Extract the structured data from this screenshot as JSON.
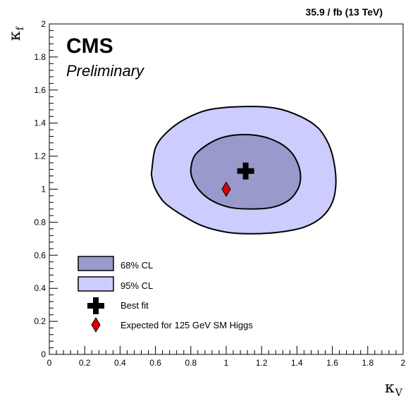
{
  "chart_data": {
    "type": "contour",
    "lumi_label": "35.9 / fb (13 TeV)",
    "experiment_label": "CMS",
    "status_label": "Preliminary",
    "xlabel_main": "κ",
    "xlabel_sub": "V",
    "ylabel_main": "κ",
    "ylabel_sub": "f",
    "xlim": [
      0,
      2
    ],
    "ylim": [
      0,
      2
    ],
    "x_ticks": [
      "0",
      "0.2",
      "0.4",
      "0.6",
      "0.8",
      "1",
      "1.2",
      "1.4",
      "1.6",
      "1.8",
      "2"
    ],
    "y_ticks": [
      "0",
      "0.2",
      "0.4",
      "0.6",
      "0.8",
      "1",
      "1.2",
      "1.4",
      "1.6",
      "1.8",
      "2"
    ],
    "x_tick_values": [
      0,
      0.2,
      0.4,
      0.6,
      0.8,
      1.0,
      1.2,
      1.4,
      1.6,
      1.8,
      2.0
    ],
    "y_tick_values": [
      0,
      0.2,
      0.4,
      0.6,
      0.8,
      1.0,
      1.2,
      1.4,
      1.6,
      1.8,
      2.0
    ],
    "contours": [
      {
        "name": "95% CL",
        "fill": "#ccccff",
        "points": [
          [
            0.58,
            1.12
          ],
          [
            0.6,
            1.25
          ],
          [
            0.66,
            1.34
          ],
          [
            0.76,
            1.42
          ],
          [
            0.9,
            1.48
          ],
          [
            1.1,
            1.5
          ],
          [
            1.28,
            1.49
          ],
          [
            1.42,
            1.44
          ],
          [
            1.52,
            1.37
          ],
          [
            1.58,
            1.27
          ],
          [
            1.61,
            1.16
          ],
          [
            1.62,
            1.03
          ],
          [
            1.6,
            0.92
          ],
          [
            1.54,
            0.83
          ],
          [
            1.44,
            0.77
          ],
          [
            1.3,
            0.74
          ],
          [
            1.14,
            0.73
          ],
          [
            1.0,
            0.74
          ],
          [
            0.86,
            0.78
          ],
          [
            0.74,
            0.85
          ],
          [
            0.65,
            0.92
          ],
          [
            0.6,
            1.0
          ],
          [
            0.58,
            1.07
          ]
        ]
      },
      {
        "name": "68% CL",
        "fill": "#9999cc",
        "points": [
          [
            0.8,
            1.12
          ],
          [
            0.82,
            1.2
          ],
          [
            0.88,
            1.26
          ],
          [
            0.97,
            1.31
          ],
          [
            1.08,
            1.33
          ],
          [
            1.2,
            1.32
          ],
          [
            1.3,
            1.28
          ],
          [
            1.37,
            1.22
          ],
          [
            1.41,
            1.14
          ],
          [
            1.42,
            1.06
          ],
          [
            1.4,
            0.99
          ],
          [
            1.35,
            0.93
          ],
          [
            1.26,
            0.89
          ],
          [
            1.14,
            0.88
          ],
          [
            1.02,
            0.89
          ],
          [
            0.92,
            0.93
          ],
          [
            0.85,
            0.99
          ],
          [
            0.81,
            1.06
          ]
        ]
      }
    ],
    "best_fit": {
      "name": "Best fit",
      "x": 1.11,
      "y": 1.11
    },
    "expected": {
      "name": "Expected for 125 GeV SM Higgs",
      "x": 1.0,
      "y": 1.0
    },
    "legend": [
      {
        "label": "68% CL",
        "kind": "box",
        "fill": "#9999cc"
      },
      {
        "label": "95% CL",
        "kind": "box",
        "fill": "#ccccff"
      },
      {
        "label": "Best fit",
        "kind": "cross"
      },
      {
        "label": "Expected for 125 GeV SM Higgs",
        "kind": "diamond"
      }
    ],
    "legend_position": "bottom-left",
    "grid": false,
    "colors": {
      "best_fit": "#000000",
      "expected": "#dd0000"
    }
  }
}
